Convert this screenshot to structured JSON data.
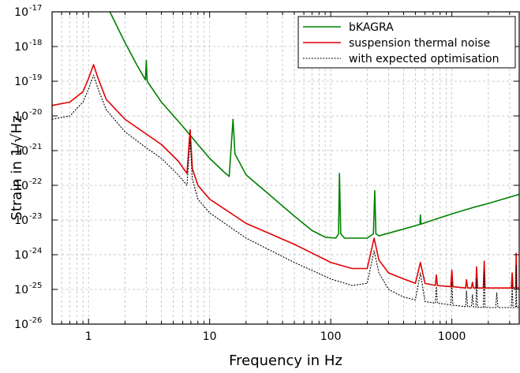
{
  "chart_data": {
    "type": "line",
    "xlabel": "Frequency in Hz",
    "ylabel": "Strain in 1/√Hz",
    "x_scale": "log",
    "y_scale": "log",
    "xlim": [
      0.5,
      3600
    ],
    "ylim": [
      1e-26,
      1e-17
    ],
    "grid": true,
    "legend_position": "top-right",
    "x_ticks": [
      {
        "value": 1,
        "label": "1"
      },
      {
        "value": 10,
        "label": "10"
      },
      {
        "value": 100,
        "label": "100"
      },
      {
        "value": 1000,
        "label": "1000"
      }
    ],
    "y_ticks": [
      {
        "value": 1e-26,
        "exp": "-26"
      },
      {
        "value": 1e-25,
        "exp": "-25"
      },
      {
        "value": 1e-24,
        "exp": "-24"
      },
      {
        "value": 1e-23,
        "exp": "-23"
      },
      {
        "value": 1e-22,
        "exp": "-22"
      },
      {
        "value": 1e-21,
        "exp": "-21"
      },
      {
        "value": 1e-20,
        "exp": "-20"
      },
      {
        "value": 1e-19,
        "exp": "-19"
      },
      {
        "value": 1e-18,
        "exp": "-18"
      },
      {
        "value": 1e-17,
        "exp": "-17"
      }
    ],
    "series": [
      {
        "name": "bKAGRA",
        "color": "#008000",
        "style": "solid",
        "points": [
          [
            1.5,
            1e-17
          ],
          [
            2.0,
            1.3e-18
          ],
          [
            2.5,
            3e-19
          ],
          [
            2.95,
            1.1e-19
          ],
          [
            3.0,
            4e-19
          ],
          [
            3.05,
            1e-19
          ],
          [
            4,
            2.5e-20
          ],
          [
            6,
            5e-21
          ],
          [
            8,
            1.5e-21
          ],
          [
            10,
            6e-22
          ],
          [
            13,
            2.5e-22
          ],
          [
            14.5,
            1.8e-22
          ],
          [
            15.6,
            8e-21
          ],
          [
            16.2,
            8e-22
          ],
          [
            20,
            2e-22
          ],
          [
            30,
            6e-23
          ],
          [
            50,
            1.3e-23
          ],
          [
            70,
            5e-24
          ],
          [
            90,
            3.2e-24
          ],
          [
            110,
            3e-24
          ],
          [
            116,
            4e-24
          ],
          [
            118,
            2.2e-22
          ],
          [
            121,
            4e-24
          ],
          [
            130,
            3e-24
          ],
          [
            200,
            3e-24
          ],
          [
            225,
            4e-24
          ],
          [
            231,
            7e-23
          ],
          [
            236,
            4e-24
          ],
          [
            250,
            3.5e-24
          ],
          [
            400,
            5.5e-24
          ],
          [
            545,
            7.5e-24
          ],
          [
            550,
            1.4e-23
          ],
          [
            556,
            7.6e-24
          ],
          [
            700,
            1e-23
          ],
          [
            1000,
            1.5e-23
          ],
          [
            1500,
            2.3e-23
          ],
          [
            2000,
            3e-23
          ],
          [
            3600,
            5.5e-23
          ]
        ]
      },
      {
        "name": "suspension thermal noise",
        "color": "#e00000",
        "style": "solid",
        "points": [
          [
            0.5,
            2e-20
          ],
          [
            0.7,
            2.5e-20
          ],
          [
            0.9,
            5e-20
          ],
          [
            1.0,
            1.2e-19
          ],
          [
            1.1,
            3e-19
          ],
          [
            1.2,
            1.2e-19
          ],
          [
            1.4,
            3e-20
          ],
          [
            2,
            8e-21
          ],
          [
            3,
            3e-21
          ],
          [
            4,
            1.5e-21
          ],
          [
            5.5,
            5e-22
          ],
          [
            6.5,
            2.2e-22
          ],
          [
            6.9,
            4e-21
          ],
          [
            7.2,
            3e-22
          ],
          [
            8,
            1e-22
          ],
          [
            10,
            4e-23
          ],
          [
            20,
            8e-24
          ],
          [
            50,
            2e-24
          ],
          [
            100,
            6e-25
          ],
          [
            150,
            4e-25
          ],
          [
            200,
            4e-25
          ],
          [
            228,
            3e-24
          ],
          [
            250,
            7e-25
          ],
          [
            300,
            3e-25
          ],
          [
            400,
            2e-25
          ],
          [
            500,
            1.5e-25
          ],
          [
            550,
            6e-25
          ],
          [
            600,
            1.5e-25
          ],
          [
            730,
            1.3e-25
          ],
          [
            745,
            2.6e-25
          ],
          [
            760,
            1.3e-25
          ],
          [
            980,
            1.2e-25
          ],
          [
            1000,
            3.6e-25
          ],
          [
            1020,
            1.2e-25
          ],
          [
            1300,
            1.1e-25
          ],
          [
            1320,
            1.9e-25
          ],
          [
            1350,
            1.1e-25
          ],
          [
            1450,
            1.1e-25
          ],
          [
            1480,
            1.6e-25
          ],
          [
            1510,
            1.1e-25
          ],
          [
            1580,
            1.1e-25
          ],
          [
            1600,
            4.5e-25
          ],
          [
            1630,
            1.1e-25
          ],
          [
            1820,
            1.1e-25
          ],
          [
            1850,
            6.5e-25
          ],
          [
            1880,
            1.1e-25
          ],
          [
            3100,
            1.1e-25
          ],
          [
            3150,
            3e-25
          ],
          [
            3200,
            1.1e-25
          ],
          [
            3370,
            1.1e-25
          ],
          [
            3400,
            1.1e-24
          ],
          [
            3430,
            1.1e-25
          ],
          [
            3600,
            1.1e-25
          ]
        ]
      },
      {
        "name": "with expected optimisation",
        "color": "#000000",
        "style": "dotted",
        "points": [
          [
            0.5,
            8e-21
          ],
          [
            0.7,
            1e-20
          ],
          [
            0.9,
            2.5e-20
          ],
          [
            1.0,
            6e-20
          ],
          [
            1.1,
            1.5e-19
          ],
          [
            1.2,
            6e-20
          ],
          [
            1.4,
            1.5e-20
          ],
          [
            2,
            3.5e-21
          ],
          [
            3,
            1.2e-21
          ],
          [
            4,
            6e-22
          ],
          [
            5.5,
            2e-22
          ],
          [
            6.5,
            1e-22
          ],
          [
            6.9,
            2e-21
          ],
          [
            7.2,
            1.5e-22
          ],
          [
            8,
            4e-23
          ],
          [
            10,
            1.6e-23
          ],
          [
            20,
            3e-24
          ],
          [
            50,
            6e-25
          ],
          [
            100,
            2e-25
          ],
          [
            150,
            1.3e-25
          ],
          [
            200,
            1.5e-25
          ],
          [
            228,
            1.3e-24
          ],
          [
            250,
            3e-25
          ],
          [
            300,
            1e-25
          ],
          [
            400,
            6e-26
          ],
          [
            500,
            5e-26
          ],
          [
            550,
            3e-25
          ],
          [
            600,
            4.5e-26
          ],
          [
            730,
            4e-26
          ],
          [
            745,
            1.2e-25
          ],
          [
            760,
            4e-26
          ],
          [
            980,
            3.6e-26
          ],
          [
            1000,
            1.7e-25
          ],
          [
            1020,
            3.5e-26
          ],
          [
            1300,
            3.2e-26
          ],
          [
            1320,
            9e-26
          ],
          [
            1350,
            3.2e-26
          ],
          [
            1450,
            3.2e-26
          ],
          [
            1480,
            7e-26
          ],
          [
            1510,
            3.1e-26
          ],
          [
            1580,
            3.1e-26
          ],
          [
            1600,
            2e-25
          ],
          [
            1630,
            3.1e-26
          ],
          [
            1820,
            3e-26
          ],
          [
            1850,
            3e-25
          ],
          [
            1880,
            3e-26
          ],
          [
            2300,
            3e-26
          ],
          [
            2350,
            8e-26
          ],
          [
            2400,
            3e-26
          ],
          [
            3100,
            3e-26
          ],
          [
            3150,
            1.3e-25
          ],
          [
            3200,
            3e-26
          ],
          [
            3370,
            3e-26
          ],
          [
            3400,
            5e-25
          ],
          [
            3430,
            3e-26
          ],
          [
            3600,
            3e-26
          ]
        ]
      }
    ]
  }
}
